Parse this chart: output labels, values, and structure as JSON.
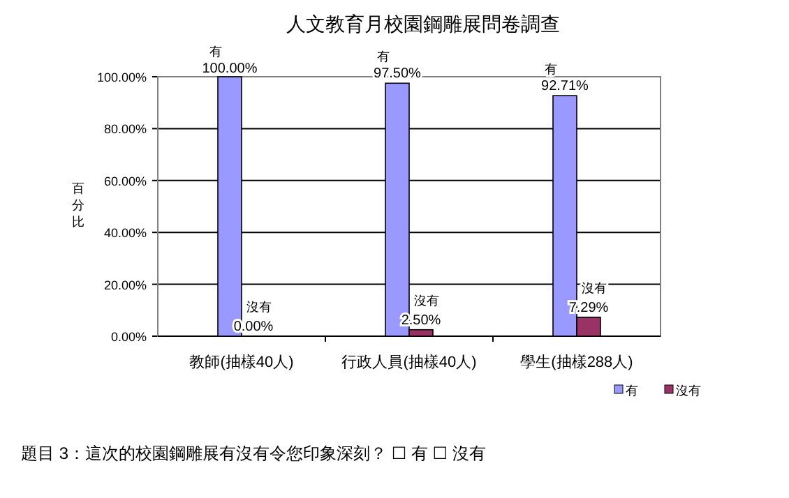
{
  "chart_data": {
    "type": "bar",
    "title": "人文教育月校園鋼雕展問卷調查",
    "ylabel": "百分比",
    "categories": [
      "教師(抽樣40人)",
      "行政人員(抽樣40人)",
      "學生(抽樣288人)"
    ],
    "series": [
      {
        "name": "有",
        "color": "#9999ff",
        "values": [
          100,
          97.5,
          92.71
        ],
        "value_labels": [
          "100.00%",
          "97.50%",
          "92.71%"
        ]
      },
      {
        "name": "沒有",
        "color": "#993366",
        "values": [
          0,
          2.5,
          7.29
        ],
        "value_labels": [
          "0.00%",
          "2.50%",
          "7.29%"
        ]
      }
    ],
    "ylim": [
      0,
      100
    ],
    "yticks": [
      {
        "value": 0,
        "label": "0.00%"
      },
      {
        "value": 20,
        "label": "20.00%"
      },
      {
        "value": 40,
        "label": "40.00%"
      },
      {
        "value": 60,
        "label": "60.00%"
      },
      {
        "value": 80,
        "label": "80.00%"
      },
      {
        "value": 100,
        "label": "100.00%"
      }
    ],
    "grid": "y",
    "legend": "bottom right",
    "annotations": [
      "題目 3：這次的校園鋼雕展有沒有令您印象深刻？ ☐ 有 ☐ 沒有"
    ]
  }
}
